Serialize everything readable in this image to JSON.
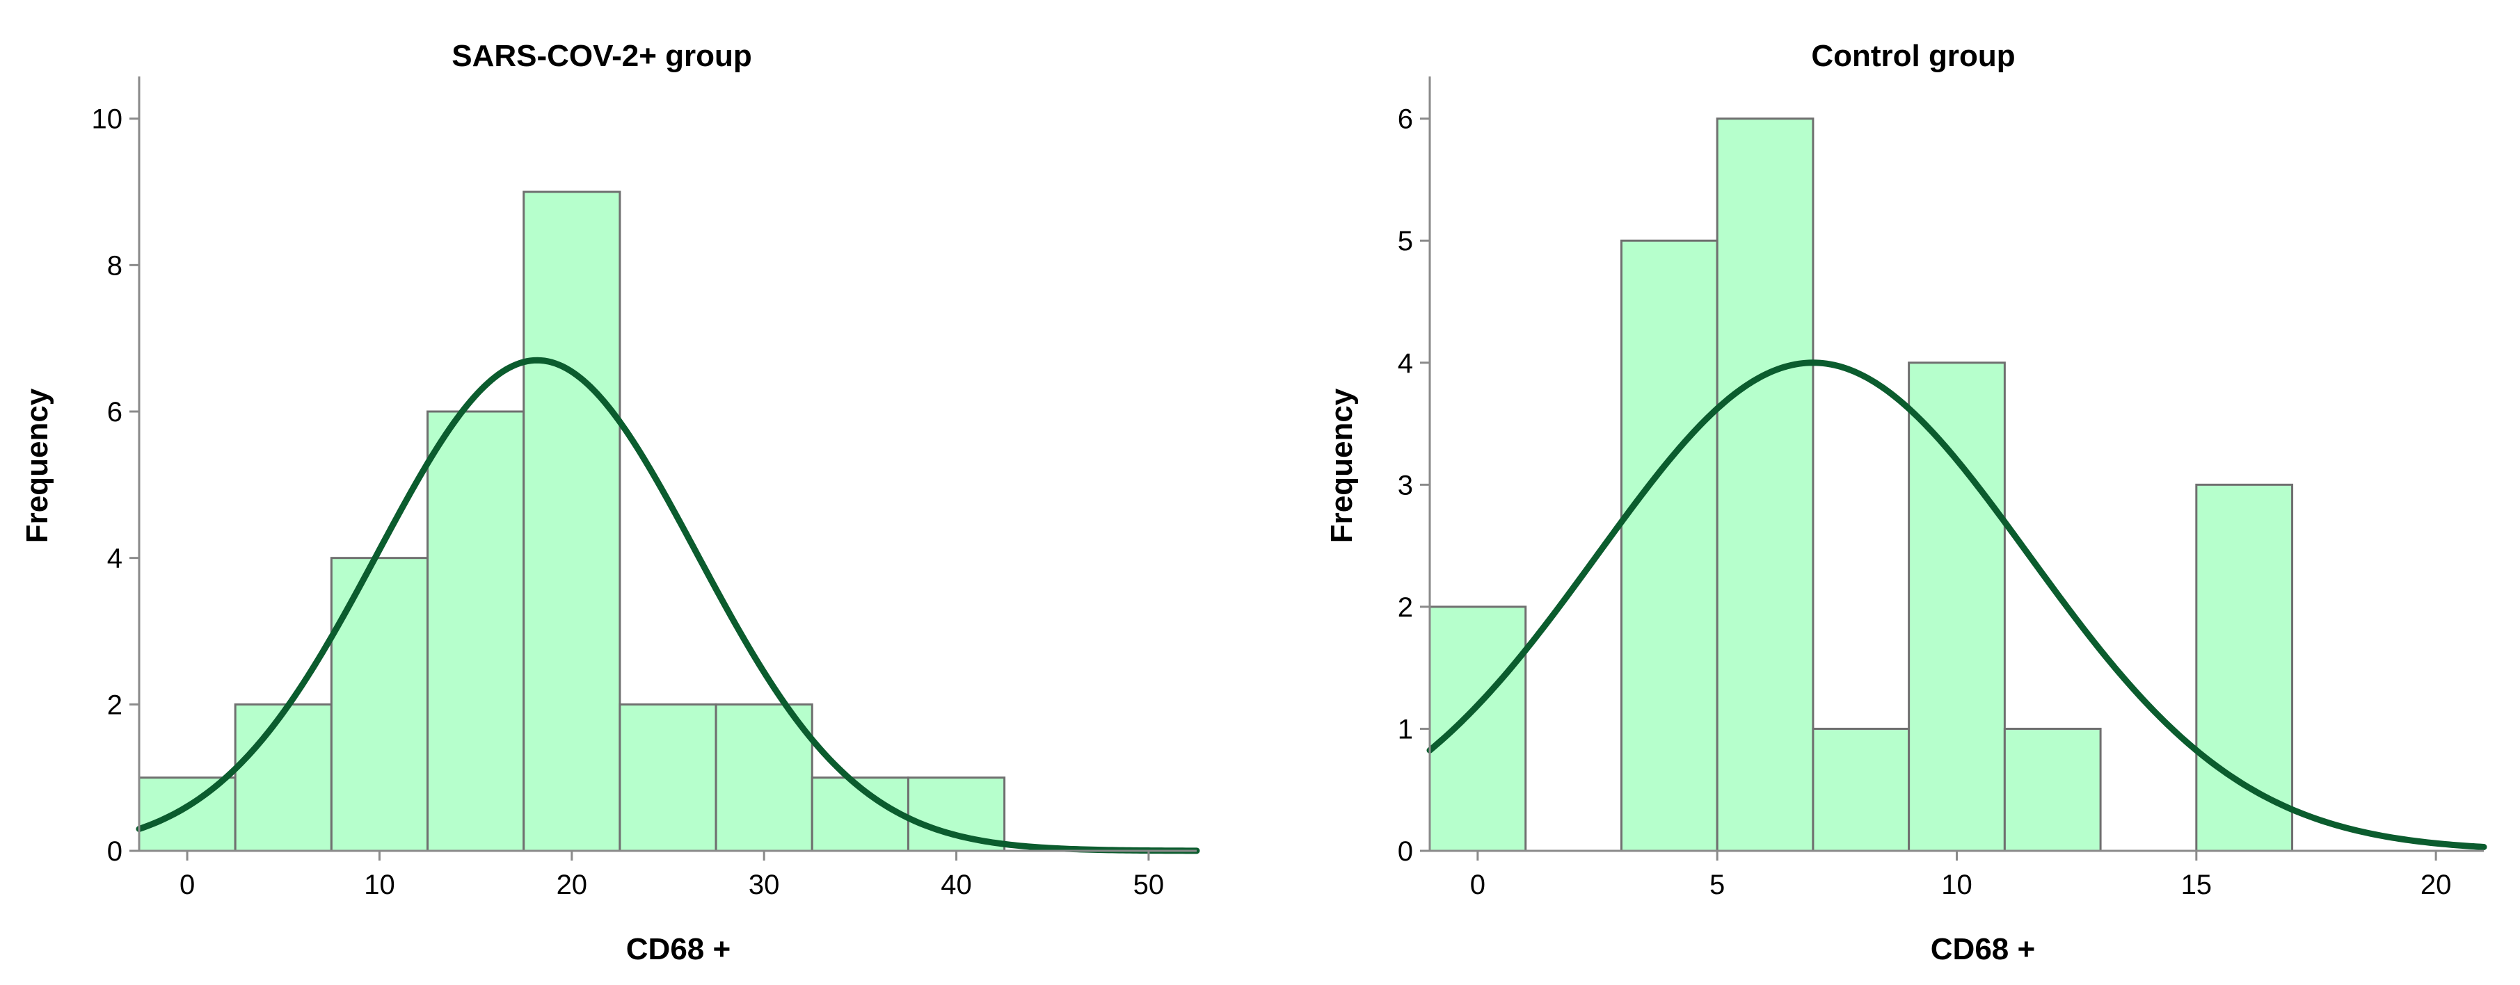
{
  "colors": {
    "bar_fill": "#b6ffcc",
    "bar_stroke": "#6f6f6f",
    "curve": "#0b5c2e",
    "axis": "#8a8a8a"
  },
  "chart_data": [
    {
      "type": "bar",
      "subtype": "histogram",
      "title": "SARS-COV-2+ group",
      "xlabel": "CD68 +",
      "ylabel": "Frequency",
      "xlim": [
        -2.5,
        52.5
      ],
      "ylim": [
        0,
        10.5
      ],
      "xticks": [
        0,
        10,
        20,
        30,
        40,
        50
      ],
      "yticks": [
        0,
        2,
        4,
        6,
        8,
        10
      ],
      "bin_edges": [
        -2.5,
        2.5,
        7.5,
        12.5,
        17.5,
        22.5,
        27.5,
        32.5,
        37.5,
        42.5
      ],
      "values": [
        1,
        2,
        4,
        6,
        9,
        2,
        2,
        1,
        1
      ],
      "normal_curve": {
        "mean": 18.2,
        "sd": 8.3,
        "peak": 6.7
      },
      "grid": false
    },
    {
      "type": "bar",
      "subtype": "histogram",
      "title": "Control group",
      "xlabel": "CD68 +",
      "ylabel": "Frequency",
      "xlim": [
        -1,
        21
      ],
      "ylim": [
        0,
        6.3
      ],
      "xticks": [
        0,
        5,
        10,
        15,
        20
      ],
      "yticks": [
        0,
        1,
        2,
        3,
        4,
        5,
        6
      ],
      "bin_edges": [
        -1,
        1,
        3,
        5,
        7,
        9,
        11,
        13,
        15,
        17
      ],
      "values": [
        2,
        0,
        5,
        6,
        1,
        4,
        1,
        0,
        3
      ],
      "normal_curve": {
        "mean": 7.0,
        "sd": 4.5,
        "peak": 4.0
      },
      "grid": false
    }
  ]
}
